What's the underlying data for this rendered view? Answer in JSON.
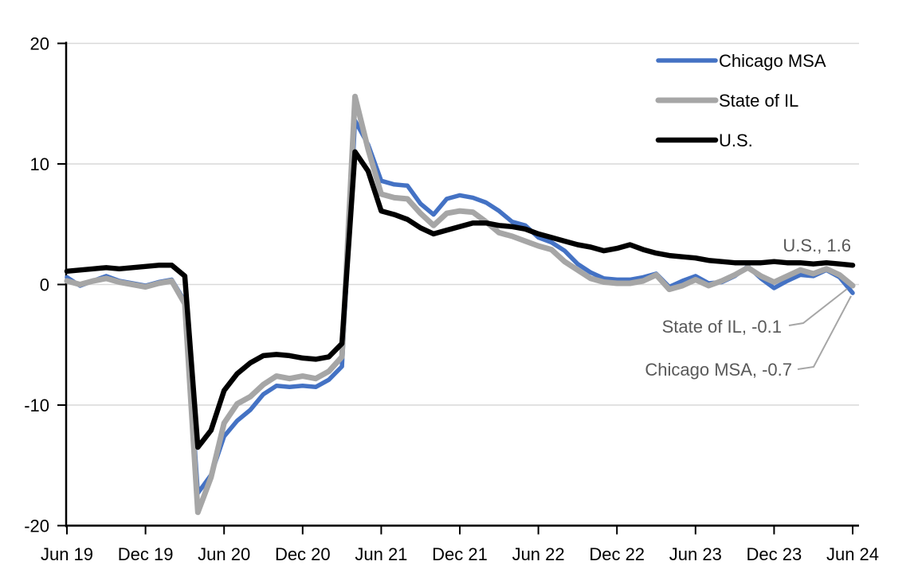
{
  "chart_data": {
    "type": "line",
    "title": "",
    "xlabel": "",
    "ylabel": "",
    "x_frequency": "monthly",
    "x_tick_labels": [
      "Jun 19",
      "Dec 19",
      "Jun 20",
      "Dec 20",
      "Jun 21",
      "Dec 21",
      "Jun 22",
      "Dec 22",
      "Jun 23",
      "Dec 23",
      "Jun 24"
    ],
    "y_ticks": [
      20,
      10,
      0,
      -10,
      -20
    ],
    "y_gridlines": [
      20,
      10,
      0,
      -10
    ],
    "ylim": [
      -20,
      20
    ],
    "gridline_color": "#D9D9D9",
    "axis_color": "#000000",
    "leader_color": "#A6A6A6",
    "annotation_text_color": "#595959",
    "legend_position": "top-right",
    "series": [
      {
        "name": "Chicago MSA",
        "color": "#4472C4",
        "stroke_width": 5.5,
        "values": [
          0.6,
          -0.1,
          0.3,
          0.7,
          0.3,
          0.1,
          -0.1,
          0.2,
          0.4,
          -1.4,
          -17.3,
          -15.8,
          -12.6,
          -11.3,
          -10.4,
          -9.1,
          -8.4,
          -8.5,
          -8.4,
          -8.5,
          -7.9,
          -6.8,
          13.6,
          11.6,
          8.6,
          8.3,
          8.2,
          6.7,
          5.8,
          7.1,
          7.4,
          7.2,
          6.8,
          6.1,
          5.2,
          4.9,
          3.9,
          3.5,
          2.8,
          1.7,
          1.0,
          0.5,
          0.4,
          0.4,
          0.6,
          0.9,
          -0.2,
          0.3,
          0.7,
          0.1,
          0.2,
          0.7,
          1.5,
          0.5,
          -0.3,
          0.3,
          0.8,
          0.7,
          1.2,
          0.6,
          -0.7
        ]
      },
      {
        "name": "State of IL",
        "color": "#A6A6A6",
        "stroke_width": 7,
        "values": [
          0.3,
          0.0,
          0.3,
          0.5,
          0.2,
          0.0,
          -0.2,
          0.1,
          0.3,
          -1.6,
          -18.9,
          -16.0,
          -11.5,
          -9.9,
          -9.3,
          -8.3,
          -7.6,
          -7.8,
          -7.6,
          -7.8,
          -7.2,
          -6.0,
          15.6,
          11.2,
          7.5,
          7.2,
          7.1,
          5.9,
          4.9,
          5.9,
          6.1,
          6.0,
          5.2,
          4.3,
          4.0,
          3.6,
          3.2,
          2.9,
          1.9,
          1.2,
          0.5,
          0.2,
          0.1,
          0.1,
          0.3,
          0.8,
          -0.4,
          -0.1,
          0.4,
          -0.1,
          0.3,
          0.8,
          1.4,
          0.7,
          0.2,
          0.7,
          1.2,
          0.9,
          1.3,
          0.8,
          -0.1
        ]
      },
      {
        "name": "U.S.",
        "color": "#000000",
        "stroke_width": 6.5,
        "values": [
          1.1,
          1.2,
          1.3,
          1.4,
          1.3,
          1.4,
          1.5,
          1.6,
          1.6,
          0.7,
          -13.5,
          -12.1,
          -8.8,
          -7.4,
          -6.5,
          -5.9,
          -5.8,
          -5.9,
          -6.1,
          -6.2,
          -6.0,
          -4.9,
          11.0,
          9.4,
          6.1,
          5.8,
          5.4,
          4.7,
          4.2,
          4.5,
          4.8,
          5.1,
          5.1,
          4.9,
          4.8,
          4.6,
          4.2,
          3.9,
          3.6,
          3.3,
          3.1,
          2.8,
          3.0,
          3.3,
          2.9,
          2.6,
          2.4,
          2.3,
          2.2,
          2.0,
          1.9,
          1.8,
          1.8,
          1.8,
          1.9,
          1.8,
          1.8,
          1.7,
          1.8,
          1.7,
          1.6
        ]
      }
    ],
    "annotations": [
      {
        "series": "U.S.",
        "text": "U.S., 1.6",
        "value": 1.6
      },
      {
        "series": "State of IL",
        "text": "State of IL, -0.1",
        "value": -0.1
      },
      {
        "series": "Chicago MSA",
        "text": "Chicago MSA, -0.7",
        "value": -0.7
      }
    ]
  }
}
